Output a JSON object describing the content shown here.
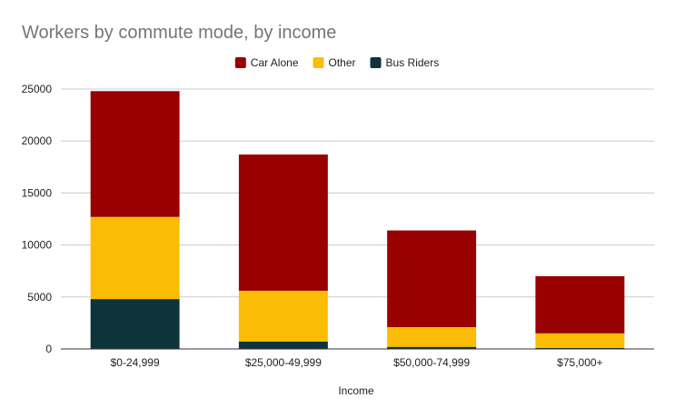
{
  "chart_data": {
    "type": "bar",
    "stacked": true,
    "title": "Workers by commute mode, by income",
    "xlabel": "Income",
    "ylabel": "",
    "ylim": [
      0,
      25000
    ],
    "yticks": [
      0,
      5000,
      10000,
      15000,
      20000,
      25000
    ],
    "grid": true,
    "legend_position": "top-center",
    "categories": [
      "$0-24,999",
      "$25,000-49,999",
      "$50,000-74,999",
      "$75,000+"
    ],
    "series": [
      {
        "name": "Bus Riders",
        "color": "#0d343a",
        "values": [
          4800,
          700,
          200,
          100
        ]
      },
      {
        "name": "Other",
        "color": "#fbbc04",
        "values": [
          7900,
          4900,
          1900,
          1400
        ]
      },
      {
        "name": "Car Alone",
        "color": "#990000",
        "values": [
          12100,
          13100,
          9300,
          5500
        ]
      }
    ],
    "legend_order": [
      "Car Alone",
      "Other",
      "Bus Riders"
    ]
  }
}
